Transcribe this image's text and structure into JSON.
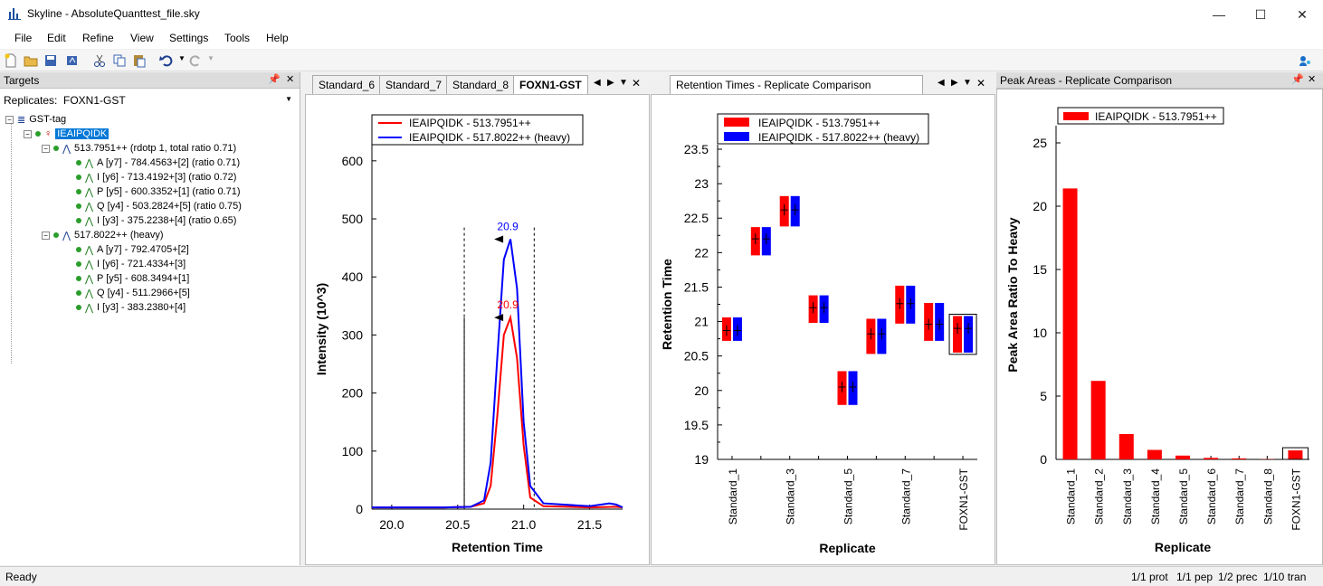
{
  "window": {
    "title": "Skyline - AbsoluteQuanttest_file.sky",
    "minimize": "—",
    "maximize": "☐",
    "close": "✕"
  },
  "menu": [
    "File",
    "Edit",
    "Refine",
    "View",
    "Settings",
    "Tools",
    "Help"
  ],
  "targets": {
    "header": "Targets",
    "replicates_label": "Replicates:",
    "replicates_value": "FOXN1-GST",
    "tree": {
      "protein": "GST-tag",
      "peptide": "IEAIPQIDK",
      "precursor1": "513.7951++ (rdotp 1, total ratio 0.71)",
      "transitions1": [
        "A [y7] - 784.4563+[2] (ratio 0.71)",
        "I [y6] - 713.4192+[3] (ratio 0.72)",
        "P [y5] - 600.3352+[1] (ratio 0.71)",
        "Q [y4] - 503.2824+[5] (ratio 0.75)",
        "I [y3] - 375.2238+[4] (ratio 0.65)"
      ],
      "precursor2": "517.8022++ (heavy)",
      "transitions2": [
        "A [y7] - 792.4705+[2]",
        "I [y6] - 721.4334+[3]",
        "P [y5] - 608.3494+[1]",
        "Q [y4] - 511.2966+[5]",
        "I [y3] - 383.2380+[4]"
      ]
    }
  },
  "chrom_tabs": [
    "Standard_6",
    "Standard_7",
    "Standard_8",
    "FOXN1-GST"
  ],
  "rt_tab": "Retention Times - Replicate Comparison",
  "pa_header": "Peak Areas - Replicate Comparison",
  "status": {
    "left": "Ready",
    "prot": "1/1 prot",
    "pep": "1/1 pep",
    "prec": "1/2 prec",
    "tran": "1/10 tran"
  },
  "colors": {
    "light": "#ff0000",
    "heavy": "#0000ff",
    "selection": "#0078d7"
  },
  "chart_data": [
    {
      "type": "line",
      "legend": [
        "IEAIPQIDK - 513.7951++",
        "IEAIPQIDK - 517.8022++ (heavy)"
      ],
      "xlabel": "Retention Time",
      "ylabel": "Intensity (10^3)",
      "xlim": [
        19.85,
        21.75
      ],
      "ylim": [
        0,
        620
      ],
      "xticks": [
        "20.0",
        "20.5",
        "21.0",
        "21.5"
      ],
      "yticks": [
        "0",
        "100",
        "200",
        "300",
        "400",
        "500",
        "600"
      ],
      "series": [
        {
          "name": "IEAIPQIDK - 513.7951++",
          "x": [
            19.85,
            20.4,
            20.6,
            20.7,
            20.75,
            20.8,
            20.85,
            20.9,
            20.95,
            21.0,
            21.05,
            21.15,
            21.5,
            21.7,
            21.75
          ],
          "y": [
            3,
            3,
            4,
            10,
            40,
            160,
            300,
            330,
            260,
            110,
            20,
            5,
            3,
            4,
            3
          ]
        },
        {
          "name": "IEAIPQIDK - 517.8022++ (heavy)",
          "x": [
            19.85,
            20.4,
            20.6,
            20.7,
            20.75,
            20.8,
            20.85,
            20.9,
            20.95,
            21.0,
            21.05,
            21.15,
            21.5,
            21.65,
            21.7,
            21.75
          ],
          "y": [
            3,
            3,
            4,
            15,
            80,
            260,
            430,
            465,
            380,
            150,
            40,
            10,
            5,
            10,
            8,
            3
          ]
        }
      ],
      "annotations": [
        {
          "text": "20.9",
          "series": "heavy"
        },
        {
          "text": "20.9",
          "series": "light"
        }
      ],
      "integration_bounds": [
        20.55,
        21.08
      ]
    },
    {
      "type": "box",
      "legend": [
        "IEAIPQIDK - 513.7951++",
        "IEAIPQIDK - 517.8022++ (heavy)"
      ],
      "xlabel": "Replicate",
      "ylabel": "Retention Time",
      "ylim": [
        19,
        23.5
      ],
      "yticks": [
        "19",
        "19.5",
        "20",
        "20.5",
        "21",
        "21.5",
        "22",
        "22.5",
        "23",
        "23.5"
      ],
      "categories": [
        "Standard_1",
        "Standard_2",
        "Standard_3",
        "Standard_4",
        "Standard_5",
        "Standard_6",
        "Standard_7",
        "Standard_8",
        "FOXN1-GST"
      ],
      "category_labels_shown": [
        "Standard_1",
        "",
        "Standard_3",
        "",
        "Standard_5",
        "",
        "Standard_7",
        "",
        "FOXN1-GST"
      ],
      "ranges": [
        [
          20.72,
          21.06
        ],
        [
          21.96,
          22.37
        ],
        [
          22.38,
          22.82
        ],
        [
          20.98,
          21.38
        ],
        [
          19.79,
          20.28
        ],
        [
          20.53,
          21.04
        ],
        [
          20.97,
          21.52
        ],
        [
          20.72,
          21.27
        ],
        [
          20.55,
          21.08
        ]
      ],
      "centers": [
        20.87,
        22.2,
        22.62,
        21.2,
        20.05,
        20.82,
        21.26,
        20.96,
        20.9
      ]
    },
    {
      "type": "bar",
      "legend": [
        "IEAIPQIDK - 513.7951++"
      ],
      "xlabel": "Replicate",
      "ylabel": "Peak Area Ratio To Heavy",
      "ylim": [
        0,
        26
      ],
      "yticks": [
        "0",
        "5",
        "10",
        "15",
        "20",
        "25"
      ],
      "categories": [
        "Standard_1",
        "Standard_2",
        "Standard_3",
        "Standard_4",
        "Standard_5",
        "Standard_6",
        "Standard_7",
        "Standard_8",
        "FOXN1-GST"
      ],
      "values": [
        21.4,
        6.2,
        2.0,
        0.75,
        0.3,
        0.12,
        0.08,
        0.02,
        0.71
      ]
    }
  ]
}
